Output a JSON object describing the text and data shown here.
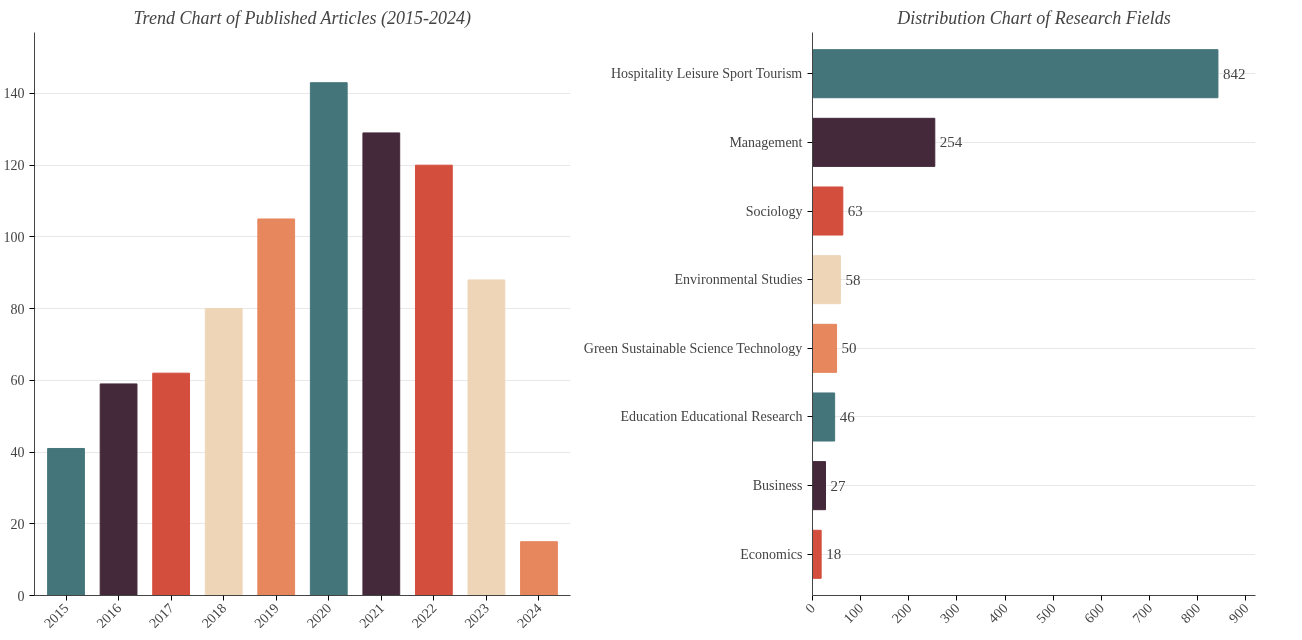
{
  "chart_data": [
    {
      "type": "bar",
      "title": "Trend Chart of Published Articles (2015-2024)",
      "categories": [
        "2015",
        "2016",
        "2017",
        "2018",
        "2019",
        "2020",
        "2021",
        "2022",
        "2023",
        "2024"
      ],
      "values": [
        41,
        59,
        62,
        80,
        105,
        143,
        129,
        120,
        88,
        15
      ],
      "colors": [
        "#44757a",
        "#44293b",
        "#d44e3d",
        "#eed5b7",
        "#e6875e",
        "#44757a",
        "#44293b",
        "#d44e3d",
        "#eed5b7",
        "#e6875e"
      ],
      "ylim": [
        0,
        157
      ],
      "yticks": [
        0,
        20,
        40,
        60,
        80,
        100,
        120,
        140
      ],
      "grid": "y"
    },
    {
      "type": "bar",
      "orientation": "horizontal",
      "title": "Distribution Chart of Research Fields",
      "categories": [
        "Hospitality Leisure Sport Tourism",
        "Management",
        "Sociology",
        "Environmental Studies",
        "Green Sustainable Science Technology",
        "Education Educational Research",
        "Business",
        "Economics"
      ],
      "values": [
        842,
        254,
        63,
        58,
        50,
        46,
        27,
        18
      ],
      "colors": [
        "#44757a",
        "#44293b",
        "#d44e3d",
        "#eed5b7",
        "#e6875e",
        "#44757a",
        "#44293b",
        "#d44e3d"
      ],
      "xlim": [
        0,
        920
      ],
      "xticks": [
        0,
        100,
        200,
        300,
        400,
        500,
        600,
        700,
        800,
        900
      ],
      "grid": "y",
      "data_labels": true
    }
  ]
}
